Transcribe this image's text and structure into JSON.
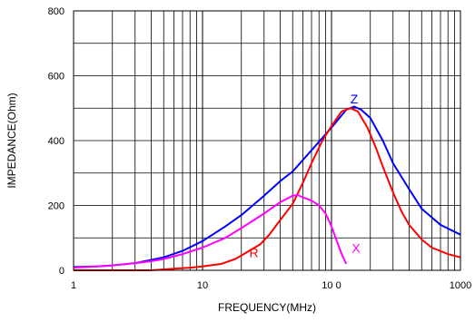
{
  "chart_data": {
    "type": "line",
    "title": "",
    "xlabel": "FREQUENCY(MHz)",
    "ylabel": "IMPEDANCE(Ohm)",
    "x_scale": "log",
    "xlim": [
      1,
      1000
    ],
    "ylim": [
      0,
      800
    ],
    "grid": true,
    "x_ticks": [
      1,
      10,
      100,
      1000
    ],
    "x_tick_labels": [
      "1",
      "10",
      "10 0",
      "1000"
    ],
    "y_ticks": [
      0,
      200,
      400,
      600,
      800
    ],
    "y_tick_labels": [
      "0",
      "200",
      "400",
      "600",
      "800"
    ],
    "series": [
      {
        "name": "Z",
        "color": "#0000ff",
        "points": [
          [
            1,
            10
          ],
          [
            1.5,
            12
          ],
          [
            2,
            15
          ],
          [
            3,
            22
          ],
          [
            5,
            40
          ],
          [
            7,
            60
          ],
          [
            10,
            90
          ],
          [
            15,
            135
          ],
          [
            20,
            170
          ],
          [
            30,
            230
          ],
          [
            40,
            275
          ],
          [
            50,
            305
          ],
          [
            70,
            370
          ],
          [
            100,
            440
          ],
          [
            130,
            495
          ],
          [
            150,
            505
          ],
          [
            170,
            495
          ],
          [
            200,
            470
          ],
          [
            250,
            400
          ],
          [
            300,
            330
          ],
          [
            400,
            250
          ],
          [
            500,
            190
          ],
          [
            700,
            140
          ],
          [
            1000,
            110
          ]
        ]
      },
      {
        "name": "R",
        "color": "#ff0000",
        "points": [
          [
            1,
            0
          ],
          [
            2,
            0
          ],
          [
            4,
            0
          ],
          [
            6,
            5
          ],
          [
            8,
            8
          ],
          [
            10,
            12
          ],
          [
            14,
            20
          ],
          [
            18,
            35
          ],
          [
            22,
            55
          ],
          [
            28,
            80
          ],
          [
            33,
            110
          ],
          [
            40,
            155
          ],
          [
            50,
            205
          ],
          [
            60,
            270
          ],
          [
            70,
            330
          ],
          [
            85,
            400
          ],
          [
            100,
            445
          ],
          [
            120,
            490
          ],
          [
            140,
            500
          ],
          [
            160,
            490
          ],
          [
            190,
            440
          ],
          [
            220,
            380
          ],
          [
            250,
            320
          ],
          [
            300,
            240
          ],
          [
            350,
            180
          ],
          [
            400,
            140
          ],
          [
            500,
            95
          ],
          [
            600,
            70
          ],
          [
            800,
            50
          ],
          [
            1000,
            40
          ]
        ]
      },
      {
        "name": "X",
        "color": "#ff00ff",
        "points": [
          [
            1,
            8
          ],
          [
            1.5,
            12
          ],
          [
            2,
            15
          ],
          [
            3,
            22
          ],
          [
            4,
            28
          ],
          [
            5,
            35
          ],
          [
            7,
            50
          ],
          [
            10,
            70
          ],
          [
            15,
            100
          ],
          [
            20,
            130
          ],
          [
            30,
            175
          ],
          [
            40,
            210
          ],
          [
            50,
            230
          ],
          [
            55,
            232
          ],
          [
            60,
            225
          ],
          [
            70,
            215
          ],
          [
            80,
            200
          ],
          [
            90,
            175
          ],
          [
            100,
            135
          ],
          [
            110,
            90
          ],
          [
            120,
            50
          ],
          [
            130,
            20
          ]
        ]
      }
    ],
    "annotations": [
      {
        "text": "Z",
        "x": 150,
        "y": 515,
        "color": "#0000ff"
      },
      {
        "text": "R",
        "x": 25,
        "y": 40,
        "color": "#ff0000"
      },
      {
        "text": "X",
        "x": 155,
        "y": 55,
        "color": "#ff00ff"
      }
    ]
  }
}
